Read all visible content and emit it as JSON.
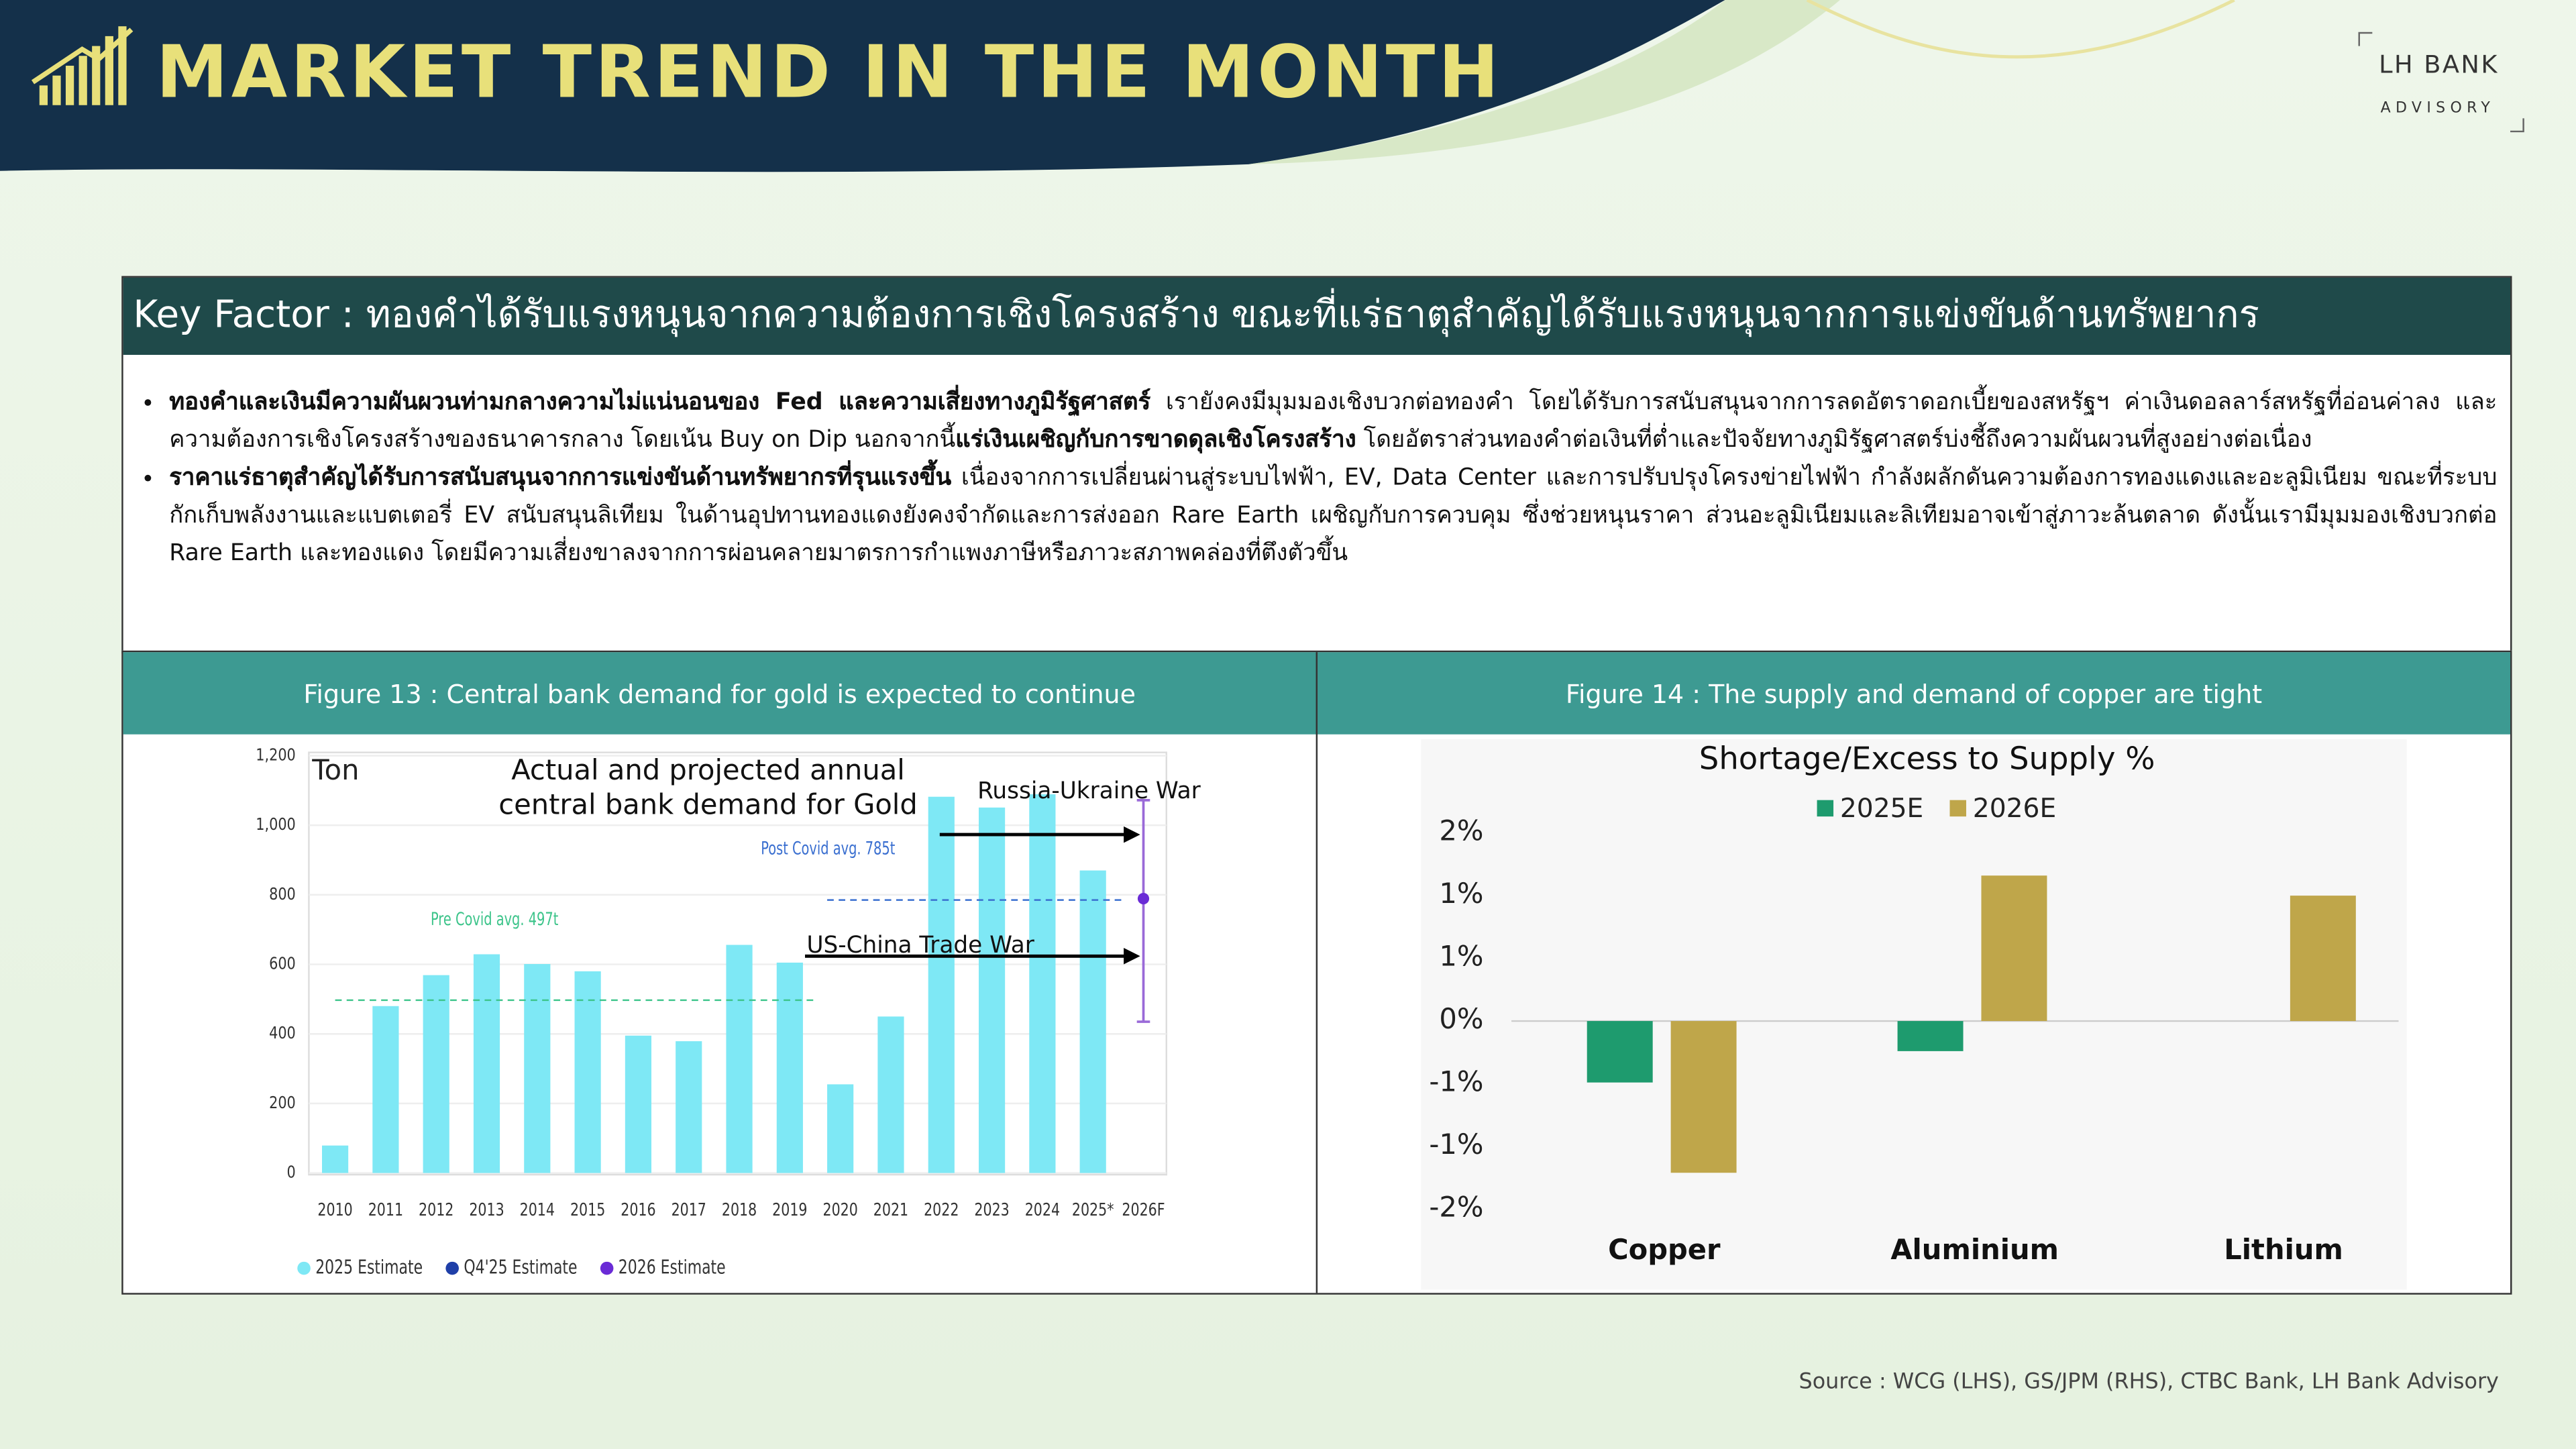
{
  "header": {
    "title": "MARKET TREND IN THE MONTH",
    "brand": "LH BANK",
    "brand_sub": "ADVISORY"
  },
  "key_factor": {
    "title": "Key Factor : ทองคำได้รับแรงหนุนจากความต้องการเชิงโครงสร้าง ขณะที่แร่ธาตุสำคัญได้รับแรงหนุนจากการแข่งขันด้านทรัพยากร",
    "bullets": [
      {
        "parts": [
          {
            "text": "ทองคำและเงินมีความผันผวนท่ามกลางความไม่แน่นอนของ Fed และความเสี่ยงทางภูมิรัฐศาสตร์",
            "bold": true
          },
          {
            "text": " เรายังคงมีมุมมองเชิงบวกต่อทองคำ โดยได้รับการสนับสนุนจากการลดอัตราดอกเบี้ยของสหรัฐฯ ค่าเงินดอลลาร์สหรัฐที่อ่อนค่าลง และความต้องการเชิงโครงสร้างของธนาคารกลาง โดยเน้น Buy on Dip นอกจากนี้",
            "bold": false
          },
          {
            "text": "แร่เงินเผชิญกับการขาดดุลเชิงโครงสร้าง",
            "bold": true
          },
          {
            "text": " โดยอัตราส่วนทองคำต่อเงินที่ต่ำและปัจจัยทางภูมิรัฐศาสตร์บ่งชี้ถึงความผันผวนที่สูงอย่างต่อเนื่อง",
            "bold": false
          }
        ]
      },
      {
        "parts": [
          {
            "text": "ราคาแร่ธาตุสำคัญได้รับการสนับสนุนจากการแข่งขันด้านทรัพยากรที่รุนแรงขึ้น",
            "bold": true
          },
          {
            "text": " เนื่องจากการเปลี่ยนผ่านสู่ระบบไฟฟ้า, EV, Data Center และการปรับปรุงโครงข่ายไฟฟ้า กำลังผลักดันความต้องการทองแดงและอะลูมิเนียม ขณะที่ระบบกักเก็บพลังงานและแบตเตอรี่ EV สนับสนุนลิเทียม ในด้านอุปทานทองแดงยังคงจำกัดและการส่งออก Rare Earth เผชิญกับการควบคุม ซึ่งช่วยหนุนราคา ส่วนอะลูมิเนียมและลิเทียมอาจเข้าสู่ภาวะล้นตลาด ดังนั้นเรามีมุมมองเชิงบวกต่อ Rare Earth และทองแดง โดยมีความเสี่ยงขาลงจากการผ่อนคลายมาตรการกำแพงภาษีหรือภาวะสภาพคล่องที่ตึงตัวขึ้น",
            "bold": false
          }
        ]
      }
    ]
  },
  "chart_data": [
    {
      "type": "bar",
      "figure_title": "Figure 13 : Central bank demand for gold is expected to continue",
      "title": "Actual and projected annual central bank demand for Gold",
      "y_label": "Ton",
      "categories": [
        "2010",
        "2011",
        "2012",
        "2013",
        "2014",
        "2015",
        "2016",
        "2017",
        "2018",
        "2019",
        "2020",
        "2021",
        "2022",
        "2023",
        "2024",
        "2025*",
        "2026F"
      ],
      "series": [
        {
          "name": "2025 Estimate",
          "color": "#7ee8f5",
          "values": [
            79,
            480,
            569,
            629,
            601,
            580,
            395,
            379,
            656,
            605,
            255,
            450,
            1082,
            1051,
            1089,
            870,
            null
          ]
        },
        {
          "name": "Q4'25 Estimate",
          "color": "#1f3fa8",
          "values": [
            null,
            null,
            null,
            null,
            null,
            null,
            null,
            null,
            null,
            null,
            null,
            null,
            null,
            null,
            null,
            null,
            null
          ]
        },
        {
          "name": "2026 Estimate",
          "color": "#6a2bd6",
          "values": [
            null,
            null,
            null,
            null,
            null,
            null,
            null,
            null,
            null,
            null,
            null,
            null,
            null,
            null,
            null,
            null,
            789
          ],
          "range_low": [
            null,
            null,
            null,
            null,
            null,
            null,
            null,
            null,
            null,
            null,
            null,
            null,
            null,
            null,
            null,
            null,
            435
          ],
          "range_high": [
            null,
            null,
            null,
            null,
            null,
            null,
            null,
            null,
            null,
            null,
            null,
            null,
            null,
            null,
            null,
            null,
            1072
          ]
        }
      ],
      "ylim": [
        0,
        1200
      ],
      "yticks": [
        0,
        200,
        400,
        600,
        800,
        {
          "value": 1000,
          "label": "1,000"
        },
        {
          "value": 1200,
          "label": "1,200"
        }
      ],
      "averages": [
        {
          "label": "Pre Covid avg. 497t",
          "value": 497,
          "color": "#3cc48a"
        },
        {
          "label": "Post Covid avg. 785t",
          "value": 785,
          "color": "#3a6fd0"
        }
      ],
      "annotations": [
        "Russia-Ukraine War",
        "US-China Trade War"
      ]
    },
    {
      "type": "grouped_bar",
      "figure_title": "Figure 14 : The supply and demand of copper are tight",
      "title": "Shortage/Excess to Supply %",
      "categories": [
        "Copper",
        "Aluminium",
        "Lithium"
      ],
      "series": [
        {
          "name": "2025E",
          "color": "#1e9b6e",
          "values": [
            -0.49,
            -0.24,
            null
          ]
        },
        {
          "name": "2026E",
          "color": "#bfa64a",
          "values": [
            -1.21,
            1.16,
            1.0
          ]
        }
      ],
      "ylim": [
        -1.5,
        1.5
      ],
      "yticks": [
        {
          "value": -1.5,
          "label": "-2%"
        },
        {
          "value": -1,
          "label": "-1%"
        },
        {
          "value": -0.5,
          "label": "-1%"
        },
        {
          "value": 0,
          "label": "0%"
        },
        {
          "value": 0.5,
          "label": "1%"
        },
        {
          "value": 1,
          "label": "1%"
        },
        {
          "value": 1.5,
          "label": "2%"
        }
      ]
    }
  ],
  "source": "Source : WCG (LHS), GS/JPM (RHS), CTBC Bank, LH Bank Advisory"
}
